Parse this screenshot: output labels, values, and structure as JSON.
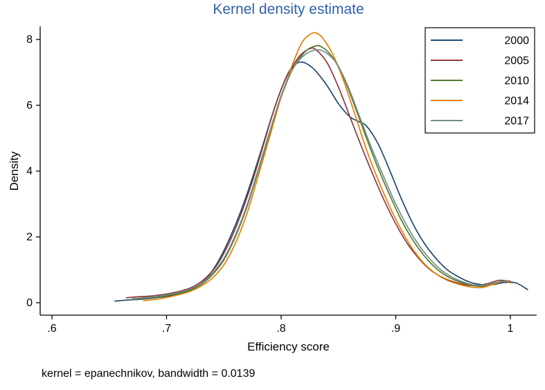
{
  "colors": {
    "title_text": "#2e62a8",
    "axis": "#000000",
    "plot_background": "#ffffff",
    "legend_border": "#000000"
  },
  "footer": {
    "note": "kernel = epanechnikov, bandwidth = 0.0139"
  },
  "chart_data": {
    "type": "line",
    "title": "Kernel density estimate",
    "xlabel": "Efficiency score",
    "ylabel": "Density",
    "xlim": [
      0.6,
      1.02
    ],
    "ylim": [
      0,
      8.5
    ],
    "grid": false,
    "legend_position": "top-right",
    "note": "kernel = epanechnikov, bandwidth = 0.0139",
    "xticks": [
      {
        "v": 0.6,
        "label": ".6"
      },
      {
        "v": 0.7,
        "label": ".7"
      },
      {
        "v": 0.8,
        "label": ".8"
      },
      {
        "v": 0.9,
        "label": ".9"
      },
      {
        "v": 1.0,
        "label": "1"
      }
    ],
    "yticks": [
      {
        "v": 0,
        "label": "0"
      },
      {
        "v": 2,
        "label": "2"
      },
      {
        "v": 4,
        "label": "4"
      },
      {
        "v": 6,
        "label": "6"
      },
      {
        "v": 8,
        "label": "8"
      }
    ],
    "series": [
      {
        "name": "2000",
        "color": "#1a476f",
        "points": [
          [
            0.655,
            0.05
          ],
          [
            0.665,
            0.08
          ],
          [
            0.675,
            0.1
          ],
          [
            0.685,
            0.13
          ],
          [
            0.695,
            0.17
          ],
          [
            0.705,
            0.22
          ],
          [
            0.715,
            0.3
          ],
          [
            0.725,
            0.45
          ],
          [
            0.735,
            0.75
          ],
          [
            0.745,
            1.25
          ],
          [
            0.755,
            1.95
          ],
          [
            0.765,
            2.8
          ],
          [
            0.775,
            3.8
          ],
          [
            0.785,
            4.9
          ],
          [
            0.795,
            6.0
          ],
          [
            0.805,
            6.9
          ],
          [
            0.81,
            7.15
          ],
          [
            0.815,
            7.3
          ],
          [
            0.82,
            7.3
          ],
          [
            0.825,
            7.2
          ],
          [
            0.83,
            7.05
          ],
          [
            0.84,
            6.6
          ],
          [
            0.85,
            6.05
          ],
          [
            0.86,
            5.65
          ],
          [
            0.868,
            5.5
          ],
          [
            0.875,
            5.35
          ],
          [
            0.885,
            4.8
          ],
          [
            0.895,
            4.0
          ],
          [
            0.905,
            3.15
          ],
          [
            0.915,
            2.4
          ],
          [
            0.925,
            1.8
          ],
          [
            0.935,
            1.35
          ],
          [
            0.945,
            1.0
          ],
          [
            0.955,
            0.78
          ],
          [
            0.965,
            0.62
          ],
          [
            0.975,
            0.55
          ],
          [
            0.985,
            0.55
          ],
          [
            0.995,
            0.62
          ],
          [
            1.005,
            0.6
          ],
          [
            1.015,
            0.4
          ]
        ]
      },
      {
        "name": "2005",
        "color": "#90353b",
        "points": [
          [
            0.665,
            0.15
          ],
          [
            0.675,
            0.18
          ],
          [
            0.685,
            0.2
          ],
          [
            0.695,
            0.24
          ],
          [
            0.705,
            0.3
          ],
          [
            0.715,
            0.38
          ],
          [
            0.725,
            0.52
          ],
          [
            0.735,
            0.78
          ],
          [
            0.745,
            1.2
          ],
          [
            0.755,
            1.85
          ],
          [
            0.765,
            2.7
          ],
          [
            0.775,
            3.7
          ],
          [
            0.785,
            4.85
          ],
          [
            0.795,
            6.0
          ],
          [
            0.805,
            6.9
          ],
          [
            0.815,
            7.45
          ],
          [
            0.82,
            7.62
          ],
          [
            0.825,
            7.72
          ],
          [
            0.83,
            7.7
          ],
          [
            0.84,
            7.3
          ],
          [
            0.85,
            6.55
          ],
          [
            0.86,
            5.65
          ],
          [
            0.87,
            4.75
          ],
          [
            0.88,
            3.9
          ],
          [
            0.89,
            3.1
          ],
          [
            0.9,
            2.4
          ],
          [
            0.91,
            1.8
          ],
          [
            0.92,
            1.35
          ],
          [
            0.93,
            1.0
          ],
          [
            0.94,
            0.78
          ],
          [
            0.95,
            0.64
          ],
          [
            0.96,
            0.55
          ],
          [
            0.97,
            0.52
          ],
          [
            0.98,
            0.58
          ],
          [
            0.99,
            0.68
          ],
          [
            1.0,
            0.65
          ]
        ]
      },
      {
        "name": "2010",
        "color": "#55752f",
        "points": [
          [
            0.67,
            0.1
          ],
          [
            0.68,
            0.13
          ],
          [
            0.69,
            0.16
          ],
          [
            0.7,
            0.21
          ],
          [
            0.71,
            0.28
          ],
          [
            0.72,
            0.38
          ],
          [
            0.73,
            0.55
          ],
          [
            0.74,
            0.85
          ],
          [
            0.75,
            1.3
          ],
          [
            0.76,
            2.0
          ],
          [
            0.77,
            2.9
          ],
          [
            0.78,
            4.0
          ],
          [
            0.79,
            5.15
          ],
          [
            0.8,
            6.25
          ],
          [
            0.81,
            7.1
          ],
          [
            0.82,
            7.6
          ],
          [
            0.828,
            7.78
          ],
          [
            0.835,
            7.78
          ],
          [
            0.845,
            7.45
          ],
          [
            0.855,
            6.8
          ],
          [
            0.865,
            5.9
          ],
          [
            0.875,
            4.95
          ],
          [
            0.885,
            4.05
          ],
          [
            0.895,
            3.25
          ],
          [
            0.905,
            2.5
          ],
          [
            0.915,
            1.9
          ],
          [
            0.925,
            1.42
          ],
          [
            0.935,
            1.05
          ],
          [
            0.945,
            0.8
          ],
          [
            0.955,
            0.64
          ],
          [
            0.965,
            0.54
          ],
          [
            0.975,
            0.5
          ],
          [
            0.985,
            0.58
          ],
          [
            0.995,
            0.66
          ],
          [
            1.0,
            0.62
          ]
        ]
      },
      {
        "name": "2014",
        "color": "#e37e00",
        "points": [
          [
            0.68,
            0.06
          ],
          [
            0.69,
            0.1
          ],
          [
            0.7,
            0.16
          ],
          [
            0.71,
            0.24
          ],
          [
            0.72,
            0.34
          ],
          [
            0.73,
            0.5
          ],
          [
            0.74,
            0.75
          ],
          [
            0.75,
            1.15
          ],
          [
            0.76,
            1.8
          ],
          [
            0.77,
            2.7
          ],
          [
            0.78,
            3.85
          ],
          [
            0.79,
            5.05
          ],
          [
            0.8,
            6.25
          ],
          [
            0.81,
            7.25
          ],
          [
            0.818,
            7.9
          ],
          [
            0.825,
            8.15
          ],
          [
            0.83,
            8.2
          ],
          [
            0.836,
            8.05
          ],
          [
            0.845,
            7.55
          ],
          [
            0.855,
            6.7
          ],
          [
            0.865,
            5.65
          ],
          [
            0.875,
            4.6
          ],
          [
            0.885,
            3.7
          ],
          [
            0.895,
            2.9
          ],
          [
            0.905,
            2.2
          ],
          [
            0.915,
            1.62
          ],
          [
            0.925,
            1.18
          ],
          [
            0.935,
            0.88
          ],
          [
            0.945,
            0.68
          ],
          [
            0.955,
            0.56
          ],
          [
            0.965,
            0.48
          ],
          [
            0.975,
            0.46
          ],
          [
            0.985,
            0.56
          ],
          [
            0.995,
            0.66
          ],
          [
            1.0,
            0.6
          ]
        ]
      },
      {
        "name": "2017",
        "color": "#6e8e84",
        "points": [
          [
            0.67,
            0.12
          ],
          [
            0.68,
            0.15
          ],
          [
            0.69,
            0.19
          ],
          [
            0.7,
            0.24
          ],
          [
            0.71,
            0.31
          ],
          [
            0.72,
            0.41
          ],
          [
            0.73,
            0.58
          ],
          [
            0.74,
            0.9
          ],
          [
            0.75,
            1.35
          ],
          [
            0.76,
            2.05
          ],
          [
            0.77,
            2.95
          ],
          [
            0.78,
            4.05
          ],
          [
            0.79,
            5.2
          ],
          [
            0.8,
            6.3
          ],
          [
            0.81,
            7.1
          ],
          [
            0.82,
            7.52
          ],
          [
            0.83,
            7.68
          ],
          [
            0.838,
            7.62
          ],
          [
            0.848,
            7.3
          ],
          [
            0.858,
            6.6
          ],
          [
            0.868,
            5.7
          ],
          [
            0.878,
            4.78
          ],
          [
            0.888,
            3.95
          ],
          [
            0.898,
            3.15
          ],
          [
            0.908,
            2.45
          ],
          [
            0.918,
            1.86
          ],
          [
            0.928,
            1.4
          ],
          [
            0.938,
            1.04
          ],
          [
            0.948,
            0.8
          ],
          [
            0.958,
            0.64
          ],
          [
            0.968,
            0.54
          ],
          [
            0.978,
            0.54
          ],
          [
            0.988,
            0.62
          ],
          [
            0.998,
            0.66
          ]
        ]
      }
    ]
  }
}
